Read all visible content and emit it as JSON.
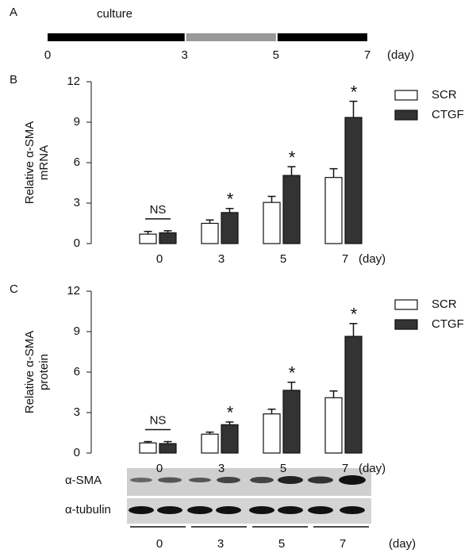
{
  "chart_data": [
    {
      "type": "timeline",
      "label": "A",
      "annotation": "culture",
      "xlabel": "(day)",
      "xlim": [
        0,
        7
      ],
      "xticks": [
        0,
        3,
        5,
        7
      ],
      "segments": [
        {
          "start": 0,
          "end": 3,
          "color": "#000000"
        },
        {
          "start": 3,
          "end": 5,
          "color": "#999999"
        },
        {
          "start": 5,
          "end": 7,
          "color": "#000000"
        }
      ]
    },
    {
      "type": "bar",
      "label": "B",
      "ylabel": [
        "Relative α-SMA",
        "mRNA"
      ],
      "xlabel": "(day)",
      "categories": [
        "0",
        "3",
        "5",
        "7"
      ],
      "series": [
        {
          "name": "SCR",
          "color": "#ffffff",
          "values": [
            0.7,
            1.5,
            3.05,
            4.9
          ],
          "errors": [
            0.2,
            0.25,
            0.45,
            0.65
          ]
        },
        {
          "name": "CTGF",
          "color": "#333333",
          "values": [
            0.8,
            2.3,
            5.05,
            9.35
          ],
          "errors": [
            0.15,
            0.3,
            0.65,
            1.2
          ]
        }
      ],
      "significance": [
        "NS",
        "*",
        "*",
        "*"
      ],
      "ylim": [
        0,
        12
      ],
      "yticks": [
        0,
        3,
        6,
        9,
        12
      ],
      "legend": "upper right"
    },
    {
      "type": "bar",
      "label": "C",
      "ylabel": [
        "Relative α-SMA",
        "protein"
      ],
      "xlabel": "(day)",
      "categories": [
        "0",
        "3",
        "5",
        "7"
      ],
      "series": [
        {
          "name": "SCR",
          "color": "#ffffff",
          "values": [
            0.75,
            1.4,
            2.9,
            4.1
          ],
          "errors": [
            0.1,
            0.15,
            0.35,
            0.5
          ]
        },
        {
          "name": "CTGF",
          "color": "#333333",
          "values": [
            0.7,
            2.1,
            4.65,
            8.65
          ],
          "errors": [
            0.15,
            0.2,
            0.6,
            0.95
          ]
        }
      ],
      "significance": [
        "NS",
        "*",
        "*",
        "*"
      ],
      "ylim": [
        0,
        12
      ],
      "yticks": [
        0,
        3,
        6,
        9,
        12
      ],
      "legend": "upper right"
    }
  ],
  "blot": {
    "rows": [
      "α-SMA",
      "α-tubulin"
    ],
    "groups": [
      "0",
      "3",
      "5",
      "7"
    ],
    "unit": "(day)"
  }
}
